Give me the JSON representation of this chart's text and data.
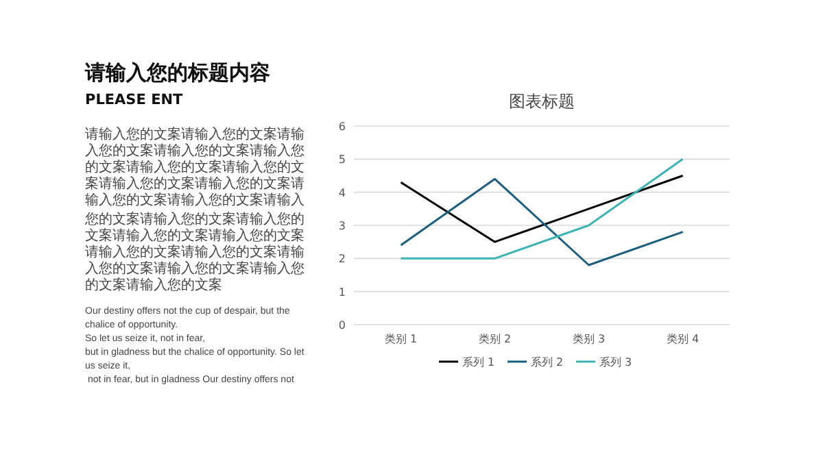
{
  "chart_data": {
    "type": "line",
    "title": "图表标题",
    "annotations": [
      "请输入您的标题内容",
      "PLEASE ENT",
      "请输入您的文案请输入您的文案请输入您的文案请输入您的文案请输入您的文案请输入您的文案请输入您的文案请输入您的文案请输入您的文案请输入您的文案请输入您的文案请输入",
      "您的文案请输入您的文案请输入您的文案请输入您的文案请输入您的文案请输入您的文案请输入您的文案请输入您的文案请输入您的文案请输入您的文案请输入您的文案",
      "Our destiny offers not the cup of despair, but the chalice of opportunity.",
      "So let us seize it, not in fear,",
      "but in gladness but the chalice of opportunity. So let us seize it,",
      " not in fear, but in gladness Our destiny offers not"
    ],
    "categories": [
      "类别 1",
      "类别 2",
      "类别 3",
      "类别 4"
    ],
    "series": [
      {
        "name": "系列 1",
        "color": "#000000",
        "values": [
          4.3,
          2.5,
          3.5,
          4.5
        ]
      },
      {
        "name": "系列 2",
        "color": "#1b5e7b",
        "values": [
          2.4,
          4.4,
          1.8,
          2.8
        ]
      },
      {
        "name": "系列 3",
        "color": "#3db4b4",
        "values": [
          2,
          2,
          3,
          5
        ]
      }
    ],
    "ylim": [
      0,
      6
    ],
    "yticks": [
      0,
      1,
      2,
      3,
      4,
      5,
      6
    ],
    "grid": "y",
    "legend": "bottom",
    "marker": "none",
    "line_style": "solid"
  }
}
